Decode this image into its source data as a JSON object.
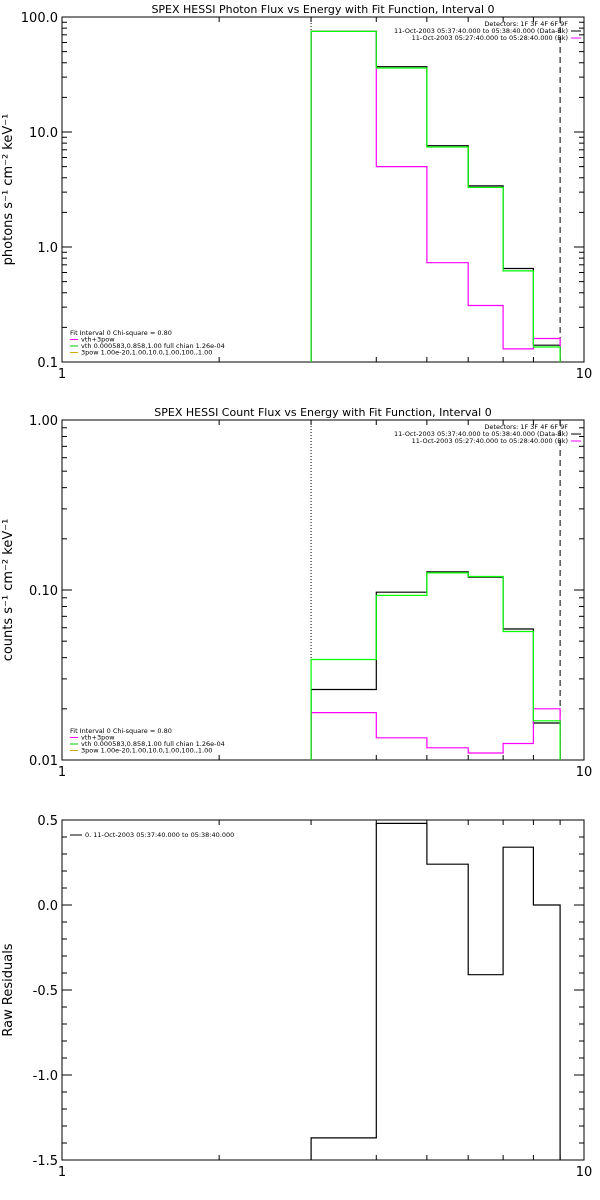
{
  "chart_data": [
    {
      "type": "line",
      "title": "SPEX HESSI Photon Flux vs Energy with Fit Function, Interval 0",
      "ylabel": "photons s⁻¹ cm⁻² keV⁻¹",
      "xscale": "log",
      "yscale": "log",
      "xlim": [
        1,
        10
      ],
      "ylim": [
        0.1,
        100
      ],
      "xticks": [
        "1",
        "10"
      ],
      "yticks": [
        {
          "value": 100,
          "label": "100.0"
        },
        {
          "value": 10,
          "label": "10.0"
        },
        {
          "value": 1,
          "label": "1.0"
        },
        {
          "value": 0.1,
          "label": "0.1"
        }
      ],
      "bin_edges": [
        3,
        4,
        5,
        6,
        7,
        8,
        9
      ],
      "series": [
        {
          "name": "data",
          "color": "#000000",
          "values": [
            75,
            37,
            7.6,
            3.4,
            0.65,
            0.14
          ]
        },
        {
          "name": "vth+3pow",
          "color": "#ff00ff",
          "values": [
            75,
            5.0,
            0.73,
            0.31,
            0.13,
            0.16
          ]
        },
        {
          "name": "vth",
          "color": "#00ff00",
          "values": [
            75,
            36,
            7.4,
            3.3,
            0.62,
            0.135
          ]
        }
      ],
      "vlines": [
        {
          "x": 3.0,
          "style": "dotted"
        },
        {
          "x": 9.0,
          "style": "dashed"
        }
      ],
      "legend_top_right": [
        {
          "text": "Detectors: 1F 3F 4F 6F 9F",
          "color": "#000000"
        },
        {
          "text": "11-Oct-2003 05:37:40.000 to 05:38:40.000 (Data-Bk)",
          "color": "#000000"
        },
        {
          "text": "11-Oct-2003 05:27:40.000 to 05:28:40.000 (Bk)",
          "color": "#ff00ff"
        }
      ],
      "legend_bottom_left": [
        {
          "text": "Fit Interval  0   Chi-square = 0.80",
          "color": ""
        },
        {
          "text": "vth+3pow",
          "color": "#ff00ff"
        },
        {
          "text": "vth 0.000583,0.858,1.00  full chian 1.26e-04",
          "color": "#00cc00"
        },
        {
          "text": "3pow 1.00e-20,1.00,10.0,1.00,100.,1.00",
          "color": "#ccaa00"
        }
      ]
    },
    {
      "type": "line",
      "title": "SPEX HESSI Count Flux vs Energy with Fit Function, Interval 0",
      "ylabel": "counts s⁻¹ cm⁻² keV⁻¹",
      "xscale": "log",
      "yscale": "log",
      "xlim": [
        1,
        10
      ],
      "ylim": [
        0.01,
        1
      ],
      "xticks": [
        "1",
        "10"
      ],
      "yticks": [
        {
          "value": 1,
          "label": "1.00"
        },
        {
          "value": 0.1,
          "label": "0.10"
        },
        {
          "value": 0.01,
          "label": "0.01"
        }
      ],
      "bin_edges": [
        3,
        4,
        5,
        6,
        7,
        8,
        9
      ],
      "series": [
        {
          "name": "data",
          "color": "#000000",
          "values": [
            0.026,
            0.097,
            0.128,
            0.119,
            0.059,
            0.0165
          ]
        },
        {
          "name": "vth+3pow",
          "color": "#ff00ff",
          "values": [
            0.019,
            0.0135,
            0.0118,
            0.011,
            0.0125,
            0.02
          ]
        },
        {
          "name": "vth",
          "color": "#00ff00",
          "values": [
            0.039,
            0.093,
            0.126,
            0.12,
            0.057,
            0.017
          ]
        }
      ],
      "vlines": [
        {
          "x": 3.0,
          "style": "dotted"
        },
        {
          "x": 9.0,
          "style": "dashed"
        }
      ],
      "legend_top_right": [
        {
          "text": "Detectors: 1F 3F 4F 6F 9F",
          "color": "#000000"
        },
        {
          "text": "11-Oct-2003 05:37:40.000 to 05:38:40.000 (Data-Bk)",
          "color": "#000000"
        },
        {
          "text": "11-Oct-2003 05:27:40.000 to 05:28:40.000 (Bk)",
          "color": "#ff00ff"
        }
      ],
      "legend_bottom_left": [
        {
          "text": "Fit Interval  0   Chi-square = 0.80",
          "color": ""
        },
        {
          "text": "vth+3pow",
          "color": "#ff00ff"
        },
        {
          "text": "vth 0.000583,0.858,1.00  full chian 1.26e-04",
          "color": "#00cc00"
        },
        {
          "text": "3pow 1.00e-20,1.00,10.0,1.00,100.,1.00",
          "color": "#ccaa00"
        }
      ]
    },
    {
      "type": "line",
      "title": "",
      "ylabel": "Raw Residuals",
      "xscale": "log",
      "yscale": "linear",
      "xlim": [
        1,
        10
      ],
      "ylim": [
        -1.5,
        0.5
      ],
      "xticks": [
        "1",
        "10"
      ],
      "yticks": [
        {
          "value": 0.5,
          "label": "0.5"
        },
        {
          "value": 0.0,
          "label": "0.0"
        },
        {
          "value": -0.5,
          "label": "-0.5"
        },
        {
          "value": -1.0,
          "label": "-1.0"
        },
        {
          "value": -1.5,
          "label": "-1.5"
        }
      ],
      "bin_edges": [
        3,
        4,
        5,
        6,
        7,
        8,
        9
      ],
      "series": [
        {
          "name": "residuals",
          "color": "#000000",
          "values": [
            -1.37,
            0.48,
            0.24,
            -0.41,
            0.34,
            0.0
          ]
        }
      ],
      "vlines": [],
      "legend_top_left": [
        {
          "text": "0. 11-Oct-2003 05:37:40.000 to 05:38:40.000",
          "color": "#000000"
        }
      ]
    }
  ]
}
